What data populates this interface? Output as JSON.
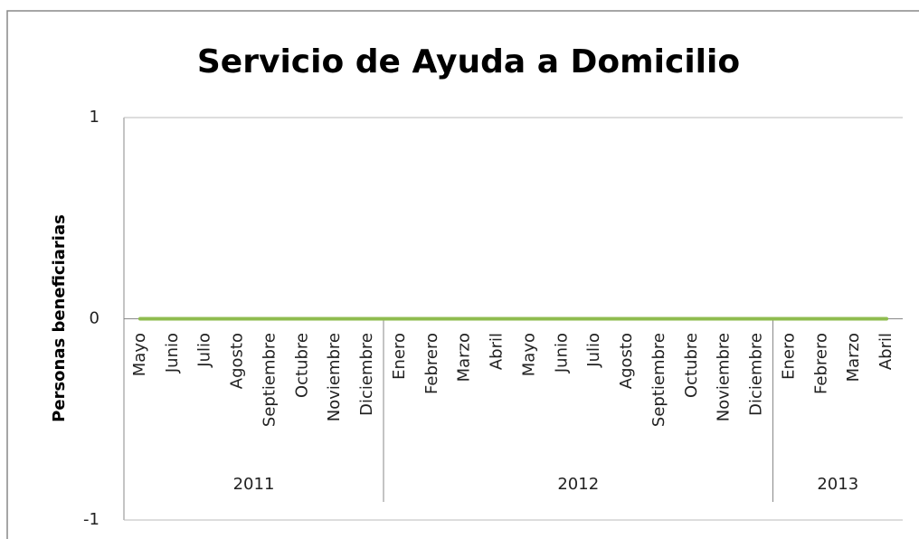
{
  "chart_data": {
    "type": "line",
    "title": "Servicio de Ayuda a Domicilio",
    "y_label": "Personas beneficiarias",
    "groups": [
      {
        "label": "2011",
        "categories": [
          "Mayo",
          "Junio",
          "Julio",
          "Agosto",
          "Septiembre",
          "Octubre",
          "Noviembre",
          "Diciembre"
        ]
      },
      {
        "label": "2012",
        "categories": [
          "Enero",
          "Febrero",
          "Marzo",
          "Abril",
          "Mayo",
          "Junio",
          "Julio",
          "Agosto",
          "Septiembre",
          "Octubre",
          "Noviembre",
          "Diciembre"
        ]
      },
      {
        "label": "2013",
        "categories": [
          "Enero",
          "Febrero",
          "Marzo",
          "Abril"
        ]
      }
    ],
    "values": [
      0,
      0,
      0,
      0,
      0,
      0,
      0,
      0,
      0,
      0,
      0,
      0,
      0,
      0,
      0,
      0,
      0,
      0,
      0,
      0,
      0,
      0,
      0,
      0
    ],
    "color": "#8fbc4f",
    "ylim": [
      -1,
      1
    ],
    "yticks": [
      -1,
      0,
      1
    ],
    "grid": true
  }
}
